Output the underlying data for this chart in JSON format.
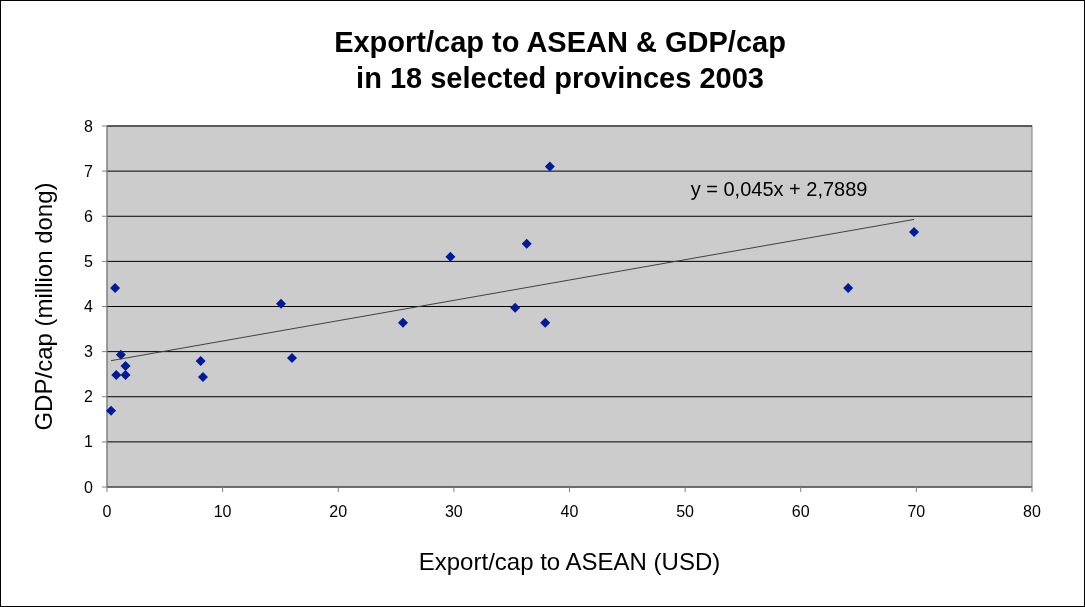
{
  "chart_data": {
    "type": "scatter",
    "title": "Export/cap to ASEAN & GDP/cap\nin 18 selected provinces 2003",
    "xlabel": "Export/cap to ASEAN (USD)",
    "ylabel": "GDP/cap (million dong)",
    "series": [
      {
        "color": "#001a99",
        "marker": "diamond",
        "x": [
          0.35,
          0.7,
          0.8,
          1.2,
          1.6,
          1.6,
          8.1,
          8.3,
          15.05,
          16.0,
          25.6,
          29.7,
          36.3,
          35.3,
          37.9,
          38.3,
          64.1,
          69.8
        ],
        "values": [
          1.69,
          4.41,
          2.48,
          2.93,
          2.68,
          2.48,
          2.79,
          2.44,
          4.06,
          2.86,
          3.64,
          5.1,
          5.39,
          3.97,
          3.64,
          7.1,
          4.41,
          5.65
        ]
      },
      {
        "type": "line",
        "color": "#404040",
        "x": [
          0.35,
          69.8
        ],
        "values": [
          2.8,
          5.93
        ]
      }
    ],
    "annotations": [
      "y = 0,045x + 2,7889"
    ],
    "xlim": [
      0,
      80
    ],
    "xticks": [
      0,
      10,
      20,
      30,
      40,
      50,
      60,
      70,
      80
    ],
    "ylim": [
      0,
      8
    ],
    "yticks": [
      0,
      1,
      2,
      3,
      4,
      5,
      6,
      7,
      8
    ],
    "grid": "y"
  }
}
